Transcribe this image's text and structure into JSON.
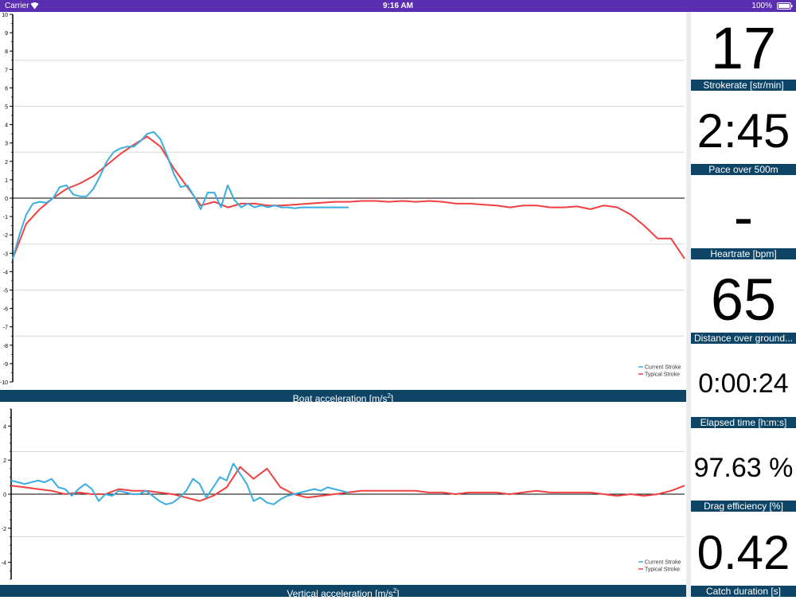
{
  "status_bar": {
    "carrier": "Carrier",
    "time": "9:16 AM",
    "battery": "100%"
  },
  "charts": {
    "boat": {
      "title": "Boat acceleration [m/s",
      "title_sup": "2",
      "title_end": "]",
      "legend": [
        "Current Stroke",
        "Typical Stroke"
      ]
    },
    "vertical": {
      "title": "Vertical acceleration [m/s",
      "title_sup": "2",
      "title_end": "]",
      "legend": [
        "Current Stroke",
        "Typical Stroke"
      ]
    }
  },
  "metrics": [
    {
      "value": "17",
      "label": "Strokerate [str/min]"
    },
    {
      "value": "2:45",
      "label": "Pace over 500m"
    },
    {
      "value": "-",
      "label": "Heartrate [bpm]"
    },
    {
      "value": "65",
      "label": "Distance over ground..."
    },
    {
      "value": "0:00:24",
      "label": "Elapsed time [h:m:s]"
    },
    {
      "value": "97.63 %",
      "label": "Drag efficiency [%]"
    },
    {
      "value": "0.42",
      "label": "Catch duration [s]"
    }
  ],
  "colors": {
    "current": "#3aaee0",
    "typical": "#f04040",
    "title_bar": "#0e4466",
    "status_bar": "#5a2db1"
  },
  "chart_data": [
    {
      "type": "line",
      "title": "Boat acceleration [m/s2]",
      "ylim": [
        -10,
        10
      ],
      "yticks": [
        -10,
        -9,
        -8,
        -7,
        -6,
        -5,
        -4,
        -3,
        -2,
        -1,
        0,
        1,
        2,
        3,
        4,
        5,
        6,
        7,
        8,
        9,
        10
      ],
      "xlim": [
        0,
        100
      ],
      "series": [
        {
          "name": "Current Stroke",
          "x": [
            0,
            1,
            2,
            3,
            4,
            5,
            6,
            7,
            8,
            9,
            10,
            11,
            12,
            13,
            14,
            15,
            16,
            17,
            18,
            19,
            20,
            21,
            22,
            23,
            24,
            25,
            26,
            27,
            28,
            29,
            30,
            31,
            32,
            33,
            34,
            35,
            36,
            37,
            38,
            39,
            40,
            41,
            42,
            43,
            44,
            45,
            46,
            47,
            48,
            49,
            50
          ],
          "values": [
            -3.3,
            -2.0,
            -0.9,
            -0.3,
            -0.2,
            -0.25,
            0.0,
            0.6,
            0.7,
            0.2,
            0.1,
            0.1,
            0.5,
            1.2,
            2.0,
            2.5,
            2.7,
            2.8,
            2.8,
            3.1,
            3.5,
            3.6,
            3.2,
            2.3,
            1.3,
            0.6,
            0.7,
            0.1,
            -0.6,
            0.3,
            0.3,
            -0.5,
            0.7,
            -0.1,
            -0.5,
            -0.3,
            -0.5,
            -0.4,
            -0.5,
            -0.4,
            -0.5,
            -0.5,
            -0.55,
            -0.5,
            -0.5,
            -0.5,
            -0.5,
            -0.5,
            -0.5,
            -0.5,
            -0.5
          ]
        },
        {
          "name": "Typical Stroke",
          "x": [
            0,
            2,
            4,
            6,
            8,
            10,
            12,
            14,
            16,
            18,
            20,
            22,
            24,
            26,
            28,
            30,
            32,
            34,
            36,
            38,
            40,
            42,
            44,
            46,
            48,
            50,
            52,
            54,
            56,
            58,
            60,
            62,
            64,
            66,
            68,
            70,
            72,
            74,
            76,
            78,
            80,
            82,
            84,
            86,
            88,
            90,
            92,
            94,
            96,
            98,
            100
          ],
          "values": [
            -3.3,
            -1.4,
            -0.6,
            0.0,
            0.5,
            0.8,
            1.2,
            1.8,
            2.4,
            2.9,
            3.35,
            2.8,
            1.6,
            0.6,
            -0.4,
            -0.2,
            -0.5,
            -0.3,
            -0.3,
            -0.4,
            -0.4,
            -0.35,
            -0.3,
            -0.25,
            -0.2,
            -0.2,
            -0.15,
            -0.15,
            -0.2,
            -0.15,
            -0.2,
            -0.15,
            -0.2,
            -0.3,
            -0.3,
            -0.35,
            -0.4,
            -0.5,
            -0.4,
            -0.4,
            -0.5,
            -0.5,
            -0.45,
            -0.6,
            -0.4,
            -0.5,
            -0.9,
            -1.5,
            -2.2,
            -2.2,
            -3.3
          ]
        }
      ],
      "legend": "bottom-right",
      "grid": true
    },
    {
      "type": "line",
      "title": "Vertical acceleration [m/s2]",
      "ylim": [
        -5,
        5
      ],
      "yticks": [
        -4,
        -2,
        0,
        2,
        4
      ],
      "xlim": [
        0,
        100
      ],
      "series": [
        {
          "name": "Current Stroke",
          "x": [
            0,
            1,
            2,
            3,
            4,
            5,
            6,
            7,
            8,
            9,
            10,
            11,
            12,
            13,
            14,
            15,
            16,
            17,
            18,
            19,
            20,
            21,
            22,
            23,
            24,
            25,
            26,
            27,
            28,
            29,
            30,
            31,
            32,
            33,
            34,
            35,
            36,
            37,
            38,
            39,
            40,
            41,
            42,
            43,
            44,
            45,
            46,
            47,
            48,
            49,
            50
          ],
          "values": [
            0.8,
            0.7,
            0.6,
            0.7,
            0.8,
            0.7,
            0.9,
            0.4,
            0.3,
            -0.1,
            0.3,
            0.6,
            0.3,
            -0.4,
            0.0,
            -0.1,
            0.2,
            0.1,
            0.0,
            0.0,
            0.2,
            -0.1,
            -0.4,
            -0.6,
            -0.5,
            -0.2,
            0.2,
            0.9,
            0.6,
            -0.2,
            0.4,
            1.0,
            0.8,
            1.8,
            1.2,
            0.6,
            -0.4,
            -0.2,
            -0.5,
            -0.6,
            -0.3,
            -0.1,
            0.0,
            0.1,
            0.2,
            0.3,
            0.2,
            0.4,
            0.3,
            0.2,
            0.1
          ]
        },
        {
          "name": "Typical Stroke",
          "x": [
            0,
            2,
            4,
            6,
            8,
            10,
            12,
            14,
            16,
            18,
            20,
            22,
            24,
            26,
            28,
            30,
            32,
            34,
            36,
            38,
            40,
            42,
            44,
            46,
            48,
            50,
            52,
            54,
            56,
            58,
            60,
            62,
            64,
            66,
            68,
            70,
            72,
            74,
            76,
            78,
            80,
            82,
            84,
            86,
            88,
            90,
            92,
            94,
            96,
            98,
            100
          ],
          "values": [
            0.5,
            0.4,
            0.3,
            0.2,
            0.0,
            0.1,
            0.0,
            0.0,
            0.3,
            0.2,
            0.2,
            0.1,
            0.0,
            -0.2,
            -0.4,
            -0.1,
            0.4,
            1.6,
            0.9,
            1.5,
            0.4,
            0.0,
            -0.2,
            -0.1,
            0.0,
            0.1,
            0.2,
            0.2,
            0.2,
            0.2,
            0.2,
            0.1,
            0.1,
            0.0,
            0.1,
            0.1,
            0.1,
            0.0,
            0.1,
            0.2,
            0.1,
            0.1,
            0.1,
            0.1,
            0.0,
            -0.1,
            0.0,
            -0.1,
            0.0,
            0.2,
            0.5
          ]
        }
      ],
      "legend": "bottom-right",
      "grid": true
    }
  ]
}
